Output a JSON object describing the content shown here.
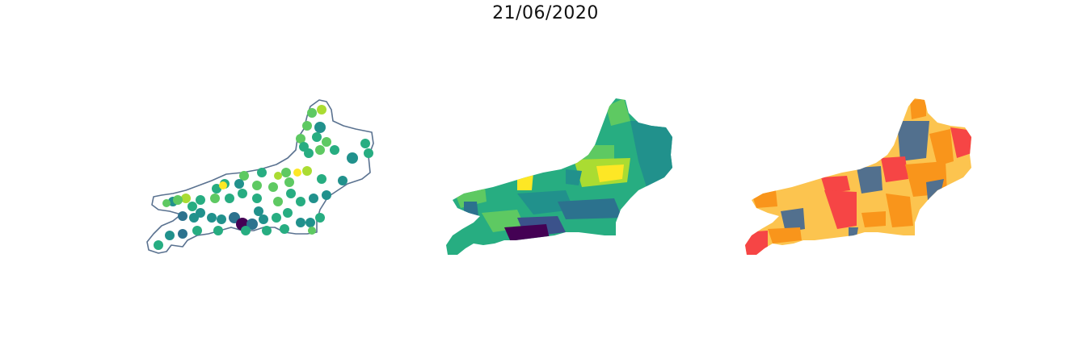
{
  "title": "21/06/2020",
  "colors": {
    "outline": "#5a7290",
    "viridis": [
      "#440154",
      "#3b528b",
      "#2c728e",
      "#21918c",
      "#27ad81",
      "#5ec962",
      "#aadc32",
      "#fde725"
    ],
    "categorical": {
      "dark_blue": "#52708e",
      "orange": "#f9951b",
      "light_orange": "#fcc44f",
      "red": "#f64545"
    }
  },
  "panels": [
    {
      "id": "dots",
      "kind": "proportional-symbol-map"
    },
    {
      "id": "choropleth",
      "kind": "choropleth-map"
    },
    {
      "id": "categorical",
      "kind": "categorical-map"
    }
  ]
}
